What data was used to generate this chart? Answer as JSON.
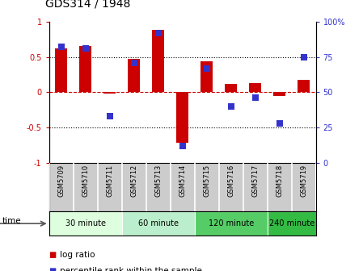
{
  "title": "GDS314 / 1948",
  "samples": [
    "GSM5709",
    "GSM5710",
    "GSM5711",
    "GSM5712",
    "GSM5713",
    "GSM5714",
    "GSM5715",
    "GSM5716",
    "GSM5717",
    "GSM5718",
    "GSM5719"
  ],
  "log_ratio": [
    0.62,
    0.65,
    -0.02,
    0.47,
    0.88,
    -0.72,
    0.44,
    0.12,
    0.13,
    -0.05,
    0.17
  ],
  "percentile": [
    82,
    81,
    33,
    71,
    92,
    12,
    67,
    40,
    46,
    28,
    75
  ],
  "bar_color": "#cc0000",
  "dot_color": "#3333cc",
  "ylim_left": [
    -1,
    1
  ],
  "ylim_right": [
    0,
    100
  ],
  "yticks_left": [
    -1,
    -0.5,
    0,
    0.5,
    1
  ],
  "yticks_right": [
    0,
    25,
    50,
    75,
    100
  ],
  "ytick_labels_left": [
    "-1",
    "-0.5",
    "0",
    "0.5",
    "1"
  ],
  "ytick_labels_right": [
    "0",
    "25",
    "50",
    "75",
    "100%"
  ],
  "hlines": [
    0.5,
    0.0,
    -0.5
  ],
  "hline_colors": [
    "black",
    "#cc0000",
    "black"
  ],
  "hline_styles": [
    "dotted",
    "dashed",
    "dotted"
  ],
  "time_groups": [
    {
      "label": "30 minute",
      "start": 0,
      "end": 3,
      "color": "#ddffdd"
    },
    {
      "label": "60 minute",
      "start": 3,
      "end": 6,
      "color": "#bbeecc"
    },
    {
      "label": "120 minute",
      "start": 6,
      "end": 9,
      "color": "#55cc66"
    },
    {
      "label": "240 minute",
      "start": 9,
      "end": 11,
      "color": "#33bb44"
    }
  ],
  "bg_color": "#ffffff",
  "bar_width": 0.5,
  "dot_size": 35,
  "time_label": "time",
  "legend_log_ratio": "log ratio",
  "legend_percentile": "percentile rank within the sample",
  "label_bg": "#cccccc"
}
